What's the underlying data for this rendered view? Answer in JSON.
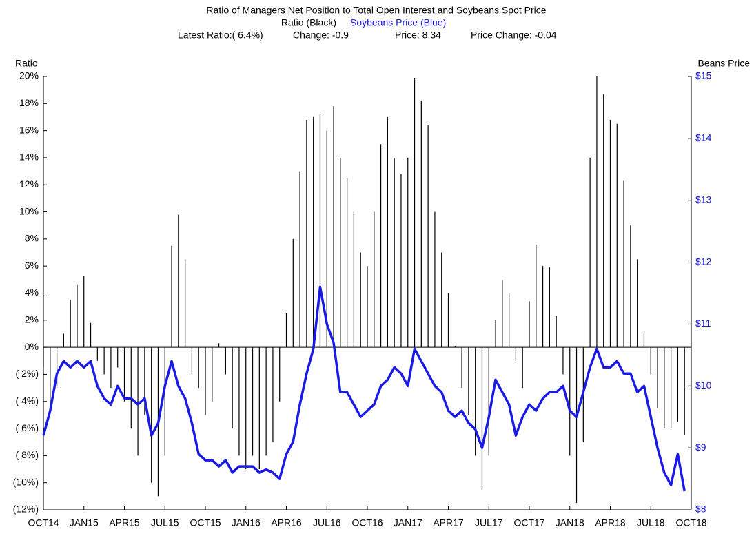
{
  "chart_data": {
    "type": "combo",
    "title": "Ratio of Managers Net Position to Total Open Interest and Soybeans Spot Price",
    "subtitle_left": "Ratio (Black)",
    "subtitle_right": "Soybeans Price (Blue)",
    "stats": [
      "Latest Ratio:( 6.4%)",
      "Change:  -0.9",
      "Price:   8.34",
      "Price Change:  -0.04"
    ],
    "ylabel": "Ratio",
    "y2label": "Beans Price",
    "x": [
      0,
      0.5,
      1,
      1.5,
      2,
      2.5,
      3,
      3.5,
      4,
      4.5,
      5,
      5.5,
      6,
      6.5,
      7,
      7.5,
      8,
      8.5,
      9,
      9.5,
      10,
      10.5,
      11,
      11.5,
      12,
      12.5,
      13,
      13.5,
      14,
      14.5,
      15,
      15.5,
      16,
      16.5,
      17,
      17.5,
      18,
      18.5,
      19,
      19.5,
      20,
      20.5,
      21,
      21.5,
      22,
      22.5,
      23,
      23.5,
      24,
      24.5,
      25,
      25.5,
      26,
      26.5,
      27,
      27.5,
      28,
      28.5,
      29,
      29.5,
      30,
      30.5,
      31,
      31.5,
      32,
      32.5,
      33,
      33.5,
      34,
      34.5,
      35,
      35.5,
      36,
      36.5,
      37,
      37.5,
      38,
      38.5,
      39,
      39.5,
      40,
      40.5,
      41,
      41.5,
      42,
      42.5,
      43,
      43.5,
      44,
      44.5,
      45,
      45.5,
      46,
      46.5,
      47,
      47.5
    ],
    "series": [
      {
        "name": "Ratio",
        "color": "#000000",
        "axis": "y",
        "values": [
          -1.5,
          -4,
          -3,
          1,
          3.5,
          4.6,
          5.3,
          1.8,
          -1,
          -2,
          -3,
          -1.5,
          -4,
          -6,
          -8,
          -5,
          -10,
          -11,
          -8,
          7.5,
          9.8,
          6.5,
          -2,
          -3,
          -5,
          -4,
          0.3,
          -2,
          -6,
          -8,
          -9,
          -8,
          -9,
          -8,
          -7,
          -4,
          2.5,
          8,
          13,
          16.8,
          17,
          17.2,
          16,
          17.8,
          14,
          12.5,
          10,
          7,
          6,
          10,
          15,
          17,
          14,
          12.8,
          14,
          19.9,
          18.2,
          16.4,
          10,
          7,
          4,
          0.1,
          -3,
          -5,
          -8,
          -10.5,
          -8,
          2,
          5,
          4,
          -1,
          -3,
          3.4,
          7.6,
          6,
          5.9,
          2.3,
          -2,
          -8,
          -11.5,
          -7,
          14,
          20,
          18.7,
          16.8,
          16.5,
          12.3,
          9,
          6.5,
          1,
          -2,
          -4.5,
          -6,
          -6,
          -5.5,
          -6.5
        ]
      },
      {
        "name": "Soybeans Price",
        "color": "#1a1ae6",
        "axis": "y2",
        "values": [
          9.2,
          9.6,
          10.2,
          10.4,
          10.3,
          10.4,
          10.3,
          10.4,
          10,
          9.8,
          9.7,
          10,
          9.8,
          9.8,
          9.7,
          9.8,
          9.2,
          9.4,
          10,
          10.4,
          10,
          9.8,
          9.4,
          8.9,
          8.8,
          8.8,
          8.7,
          8.8,
          8.6,
          8.7,
          8.7,
          8.7,
          8.6,
          8.65,
          8.6,
          8.5,
          8.9,
          9.1,
          9.7,
          10.2,
          10.6,
          11.6,
          11,
          10.7,
          9.9,
          9.9,
          9.7,
          9.5,
          9.6,
          9.7,
          10,
          10.1,
          10.3,
          10.2,
          10,
          10.6,
          10.4,
          10.2,
          10,
          9.9,
          9.6,
          9.5,
          9.6,
          9.4,
          9.3,
          9,
          9.5,
          10.1,
          9.9,
          9.7,
          9.2,
          9.5,
          9.7,
          9.6,
          9.8,
          9.9,
          9.9,
          10,
          9.6,
          9.5,
          9.9,
          10.3,
          10.6,
          10.3,
          10.3,
          10.4,
          10.2,
          10.2,
          9.9,
          10,
          9.5,
          9,
          8.6,
          8.4,
          8.9,
          8.3
        ]
      }
    ],
    "xlim": [
      0,
      48
    ],
    "xticks": [
      {
        "value": 0,
        "label": "OCT14"
      },
      {
        "value": 3,
        "label": "JAN15"
      },
      {
        "value": 6,
        "label": "APR15"
      },
      {
        "value": 9,
        "label": "JUL15"
      },
      {
        "value": 12,
        "label": "OCT15"
      },
      {
        "value": 15,
        "label": "JAN16"
      },
      {
        "value": 18,
        "label": "APR16"
      },
      {
        "value": 21,
        "label": "JUL16"
      },
      {
        "value": 24,
        "label": "OCT16"
      },
      {
        "value": 27,
        "label": "JAN17"
      },
      {
        "value": 30,
        "label": "APR17"
      },
      {
        "value": 33,
        "label": "JUL17"
      },
      {
        "value": 36,
        "label": "OCT17"
      },
      {
        "value": 39,
        "label": "JAN18"
      },
      {
        "value": 42,
        "label": "APR18"
      },
      {
        "value": 45,
        "label": "JUL18"
      },
      {
        "value": 48,
        "label": "OCT18"
      }
    ],
    "ylim": [
      -12,
      20
    ],
    "yticks": [
      {
        "value": 20,
        "label": "20%"
      },
      {
        "value": 18,
        "label": "18%"
      },
      {
        "value": 16,
        "label": "16%"
      },
      {
        "value": 14,
        "label": "14%"
      },
      {
        "value": 12,
        "label": "12%"
      },
      {
        "value": 10,
        "label": "10%"
      },
      {
        "value": 8,
        "label": "8%"
      },
      {
        "value": 6,
        "label": "6%"
      },
      {
        "value": 4,
        "label": "4%"
      },
      {
        "value": 2,
        "label": "2%"
      },
      {
        "value": 0,
        "label": "0%"
      },
      {
        "value": -2,
        "label": "( 2%)"
      },
      {
        "value": -4,
        "label": "( 4%)"
      },
      {
        "value": -6,
        "label": "( 6%)"
      },
      {
        "value": -8,
        "label": "( 8%)"
      },
      {
        "value": -10,
        "label": "(10%)"
      },
      {
        "value": -12,
        "label": "(12%)"
      }
    ],
    "y2lim": [
      8,
      15
    ],
    "y2ticks": [
      {
        "value": 15,
        "label": "$15"
      },
      {
        "value": 14,
        "label": "$14"
      },
      {
        "value": 13,
        "label": "$13"
      },
      {
        "value": 12,
        "label": "$12"
      },
      {
        "value": 11,
        "label": "$11"
      },
      {
        "value": 10,
        "label": "$10"
      },
      {
        "value": 9,
        "label": "$9"
      },
      {
        "value": 8,
        "label": "$8"
      }
    ]
  }
}
